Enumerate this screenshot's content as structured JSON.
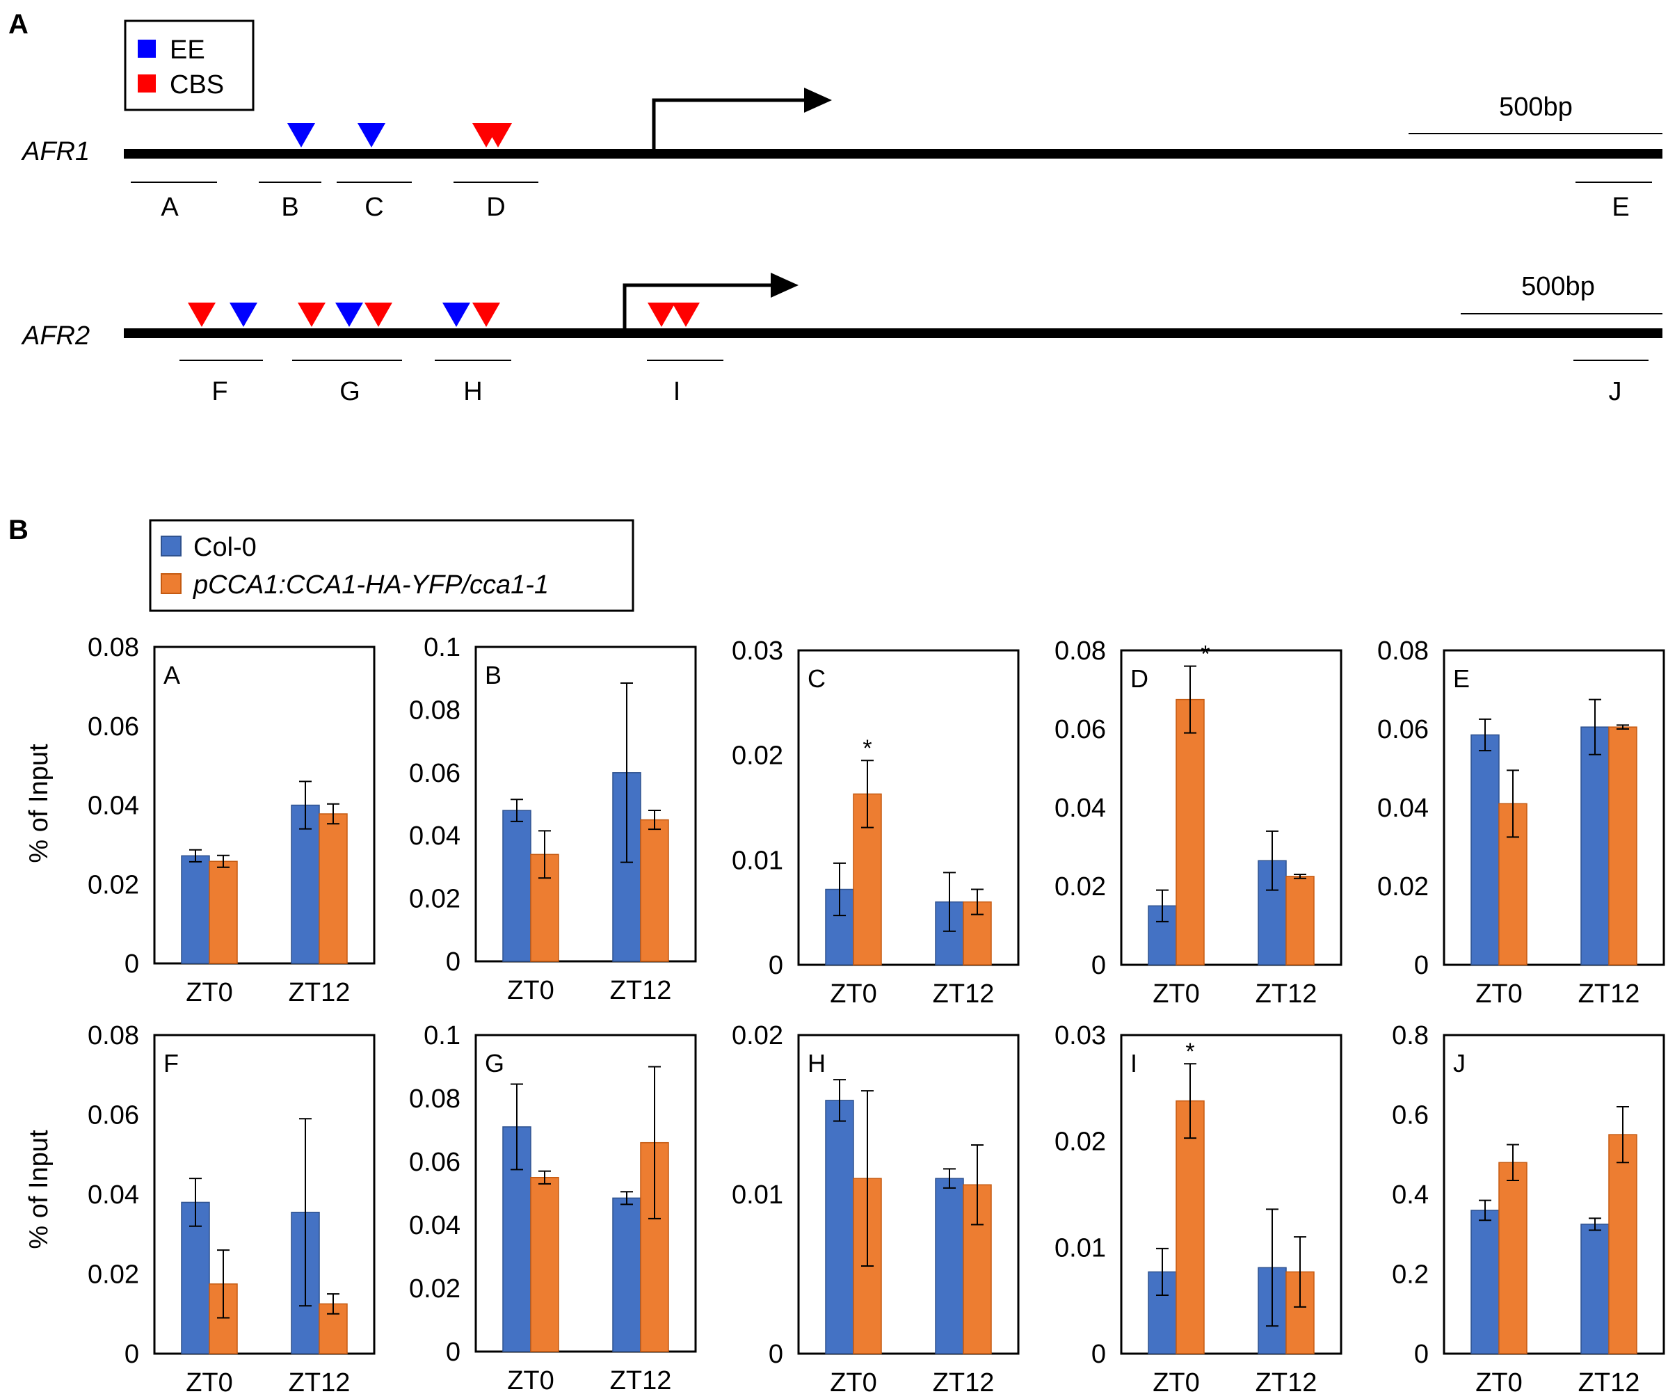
{
  "panel_labels": {
    "a": "A",
    "b": "B"
  },
  "legend_top": [
    {
      "label": "EE",
      "color": "#0000ff"
    },
    {
      "label": "CBS",
      "color": "#ff0000"
    }
  ],
  "genes": [
    {
      "name": "AFR1",
      "scale_label": "500bp",
      "sites": [
        {
          "type": "EE"
        },
        {
          "type": "EE"
        },
        {
          "type": "CBS"
        },
        {
          "type": "CBS"
        }
      ],
      "regions": [
        "A",
        "B",
        "C",
        "D",
        "E"
      ]
    },
    {
      "name": "AFR2",
      "scale_label": "500bp",
      "sites": [
        {
          "type": "CBS"
        },
        {
          "type": "EE"
        },
        {
          "type": "CBS"
        },
        {
          "type": "EE"
        },
        {
          "type": "CBS"
        },
        {
          "type": "EE"
        },
        {
          "type": "CBS"
        },
        {
          "type": "CBS"
        },
        {
          "type": "CBS"
        }
      ],
      "regions": [
        "F",
        "G",
        "H",
        "I",
        "J"
      ]
    }
  ],
  "legend_bottom": [
    {
      "label": "Col-0",
      "color": "#4472c4"
    },
    {
      "label": "pCCA1:CCA1-HA-YFP/cca1-1",
      "color": "#ed7d31"
    }
  ],
  "ylabel": "% of Input",
  "chart_data": [
    {
      "type": "bar",
      "panel": "A",
      "categories": [
        "ZT0",
        "ZT12"
      ],
      "ylim": [
        0,
        0.08
      ],
      "yticks": [
        "0",
        "0.02",
        "0.04",
        "0.06",
        "0.08"
      ],
      "ylabel": "% of Input",
      "series": [
        {
          "name": "Col-0",
          "values": [
            0.0272,
            0.04
          ],
          "errors": [
            0.0015,
            0.006
          ]
        },
        {
          "name": "pCCA1:CCA1-HA-YFP/cca1-1",
          "values": [
            0.0258,
            0.0378
          ],
          "errors": [
            0.0015,
            0.0025
          ]
        }
      ],
      "significance": []
    },
    {
      "type": "bar",
      "panel": "B",
      "categories": [
        "ZT0",
        "ZT12"
      ],
      "ylim": [
        0,
        0.1
      ],
      "yticks": [
        "0",
        "0.02",
        "0.04",
        "0.06",
        "0.08",
        "0.1"
      ],
      "ylabel": "",
      "series": [
        {
          "name": "Col-0",
          "values": [
            0.048,
            0.06
          ],
          "errors": [
            0.0035,
            0.0285
          ]
        },
        {
          "name": "pCCA1:CCA1-HA-YFP/cca1-1",
          "values": [
            0.034,
            0.045
          ],
          "errors": [
            0.0075,
            0.003
          ]
        }
      ],
      "significance": []
    },
    {
      "type": "bar",
      "panel": "C",
      "categories": [
        "ZT0",
        "ZT12"
      ],
      "ylim": [
        0,
        0.03
      ],
      "yticks": [
        "0",
        "0.01",
        "0.02",
        "0.03"
      ],
      "ylabel": "",
      "series": [
        {
          "name": "Col-0",
          "values": [
            0.0072,
            0.006
          ],
          "errors": [
            0.0025,
            0.0028
          ]
        },
        {
          "name": "pCCA1:CCA1-HA-YFP/cca1-1",
          "values": [
            0.0163,
            0.006
          ],
          "errors": [
            0.0032,
            0.0012
          ]
        }
      ],
      "significance": [
        {
          "category": "ZT0",
          "series": 1,
          "label": "*"
        }
      ]
    },
    {
      "type": "bar",
      "panel": "D",
      "categories": [
        "ZT0",
        "ZT12"
      ],
      "ylim": [
        0,
        0.08
      ],
      "yticks": [
        "0",
        "0.02",
        "0.04",
        "0.06",
        "0.08"
      ],
      "ylabel": "",
      "series": [
        {
          "name": "Col-0",
          "values": [
            0.015,
            0.0265
          ],
          "errors": [
            0.004,
            0.0075
          ]
        },
        {
          "name": "pCCA1:CCA1-HA-YFP/cca1-1",
          "values": [
            0.0675,
            0.0225
          ],
          "errors": [
            0.0085,
            0.0005
          ]
        }
      ],
      "significance": [
        {
          "category": "ZT0",
          "series": 1,
          "label": "*"
        }
      ]
    },
    {
      "type": "bar",
      "panel": "E",
      "categories": [
        "ZT0",
        "ZT12"
      ],
      "ylim": [
        0,
        0.08
      ],
      "yticks": [
        "0",
        "0.02",
        "0.04",
        "0.06",
        "0.08"
      ],
      "ylabel": "",
      "series": [
        {
          "name": "Col-0",
          "values": [
            0.0585,
            0.0605
          ],
          "errors": [
            0.004,
            0.007
          ]
        },
        {
          "name": "pCCA1:CCA1-HA-YFP/cca1-1",
          "values": [
            0.041,
            0.0605
          ],
          "errors": [
            0.0085,
            0.0005
          ]
        }
      ],
      "significance": []
    },
    {
      "type": "bar",
      "panel": "F",
      "categories": [
        "ZT0",
        "ZT12"
      ],
      "ylim": [
        0,
        0.08
      ],
      "yticks": [
        "0",
        "0.02",
        "0.04",
        "0.06",
        "0.08"
      ],
      "ylabel": "% of Input",
      "series": [
        {
          "name": "Col-0",
          "values": [
            0.038,
            0.0355
          ],
          "errors": [
            0.006,
            0.0235
          ]
        },
        {
          "name": "pCCA1:CCA1-HA-YFP/cca1-1",
          "values": [
            0.0175,
            0.0125
          ],
          "errors": [
            0.0085,
            0.0025
          ]
        }
      ],
      "significance": []
    },
    {
      "type": "bar",
      "panel": "G",
      "categories": [
        "ZT0",
        "ZT12"
      ],
      "ylim": [
        0,
        0.1
      ],
      "yticks": [
        "0",
        "0.02",
        "0.04",
        "0.06",
        "0.08",
        "0.1"
      ],
      "ylabel": "",
      "series": [
        {
          "name": "Col-0",
          "values": [
            0.071,
            0.0485
          ],
          "errors": [
            0.0135,
            0.002
          ]
        },
        {
          "name": "pCCA1:CCA1-HA-YFP/cca1-1",
          "values": [
            0.055,
            0.066
          ],
          "errors": [
            0.002,
            0.024
          ]
        }
      ],
      "significance": []
    },
    {
      "type": "bar",
      "panel": "H",
      "categories": [
        "ZT0",
        "ZT12"
      ],
      "ylim": [
        0,
        0.02
      ],
      "yticks": [
        "0",
        "0.01",
        "0.02"
      ],
      "ylabel": "",
      "series": [
        {
          "name": "Col-0",
          "values": [
            0.0159,
            0.011
          ],
          "errors": [
            0.0013,
            0.0006
          ]
        },
        {
          "name": "pCCA1:CCA1-HA-YFP/cca1-1",
          "values": [
            0.011,
            0.0106
          ],
          "errors": [
            0.0055,
            0.0025
          ]
        }
      ],
      "significance": []
    },
    {
      "type": "bar",
      "panel": "I",
      "categories": [
        "ZT0",
        "ZT12"
      ],
      "ylim": [
        0,
        0.03
      ],
      "yticks": [
        "0",
        "0.01",
        "0.02",
        "0.03"
      ],
      "ylabel": "",
      "series": [
        {
          "name": "Col-0",
          "values": [
            0.0077,
            0.0081
          ],
          "errors": [
            0.0022,
            0.0055
          ]
        },
        {
          "name": "pCCA1:CCA1-HA-YFP/cca1-1",
          "values": [
            0.0238,
            0.0077
          ],
          "errors": [
            0.0035,
            0.0033
          ]
        }
      ],
      "significance": [
        {
          "category": "ZT0",
          "series": 1,
          "label": "*"
        }
      ]
    },
    {
      "type": "bar",
      "panel": "J",
      "categories": [
        "ZT0",
        "ZT12"
      ],
      "ylim": [
        0,
        0.8
      ],
      "yticks": [
        "0",
        "0.2",
        "0.4",
        "0.6",
        "0.8"
      ],
      "ylabel": "",
      "series": [
        {
          "name": "Col-0",
          "values": [
            0.36,
            0.325
          ],
          "errors": [
            0.025,
            0.015
          ]
        },
        {
          "name": "pCCA1:CCA1-HA-YFP/cca1-1",
          "values": [
            0.48,
            0.55
          ],
          "errors": [
            0.045,
            0.07
          ]
        }
      ],
      "significance": []
    }
  ]
}
